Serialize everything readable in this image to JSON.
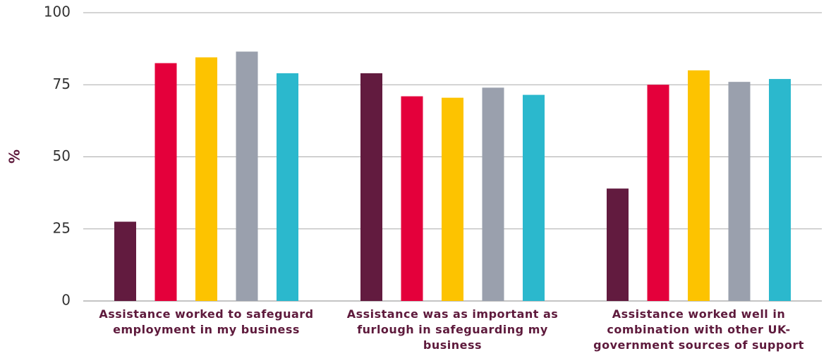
{
  "chart_data": {
    "type": "bar",
    "y_label": "%",
    "categories": [
      "Assistance worked to safeguard employment in my business",
      "Assistance was as important as furlough in safeguarding my business",
      "Assistance worked well in combination with other UK-government sources of support"
    ],
    "series": [
      {
        "color": "#621b3f",
        "values": [
          27.5,
          79,
          39
        ]
      },
      {
        "color": "#e4003b",
        "values": [
          82.5,
          71,
          75
        ]
      },
      {
        "color": "#fdc300",
        "values": [
          84.5,
          70.5,
          80
        ]
      },
      {
        "color": "#9aa0ad",
        "values": [
          86.5,
          74,
          76
        ]
      },
      {
        "color": "#2bb8cd",
        "values": [
          79,
          71.5,
          77
        ]
      }
    ],
    "ylim": [
      0,
      100
    ],
    "yticks": [
      0,
      25,
      50,
      75,
      100
    ],
    "grid": true
  }
}
